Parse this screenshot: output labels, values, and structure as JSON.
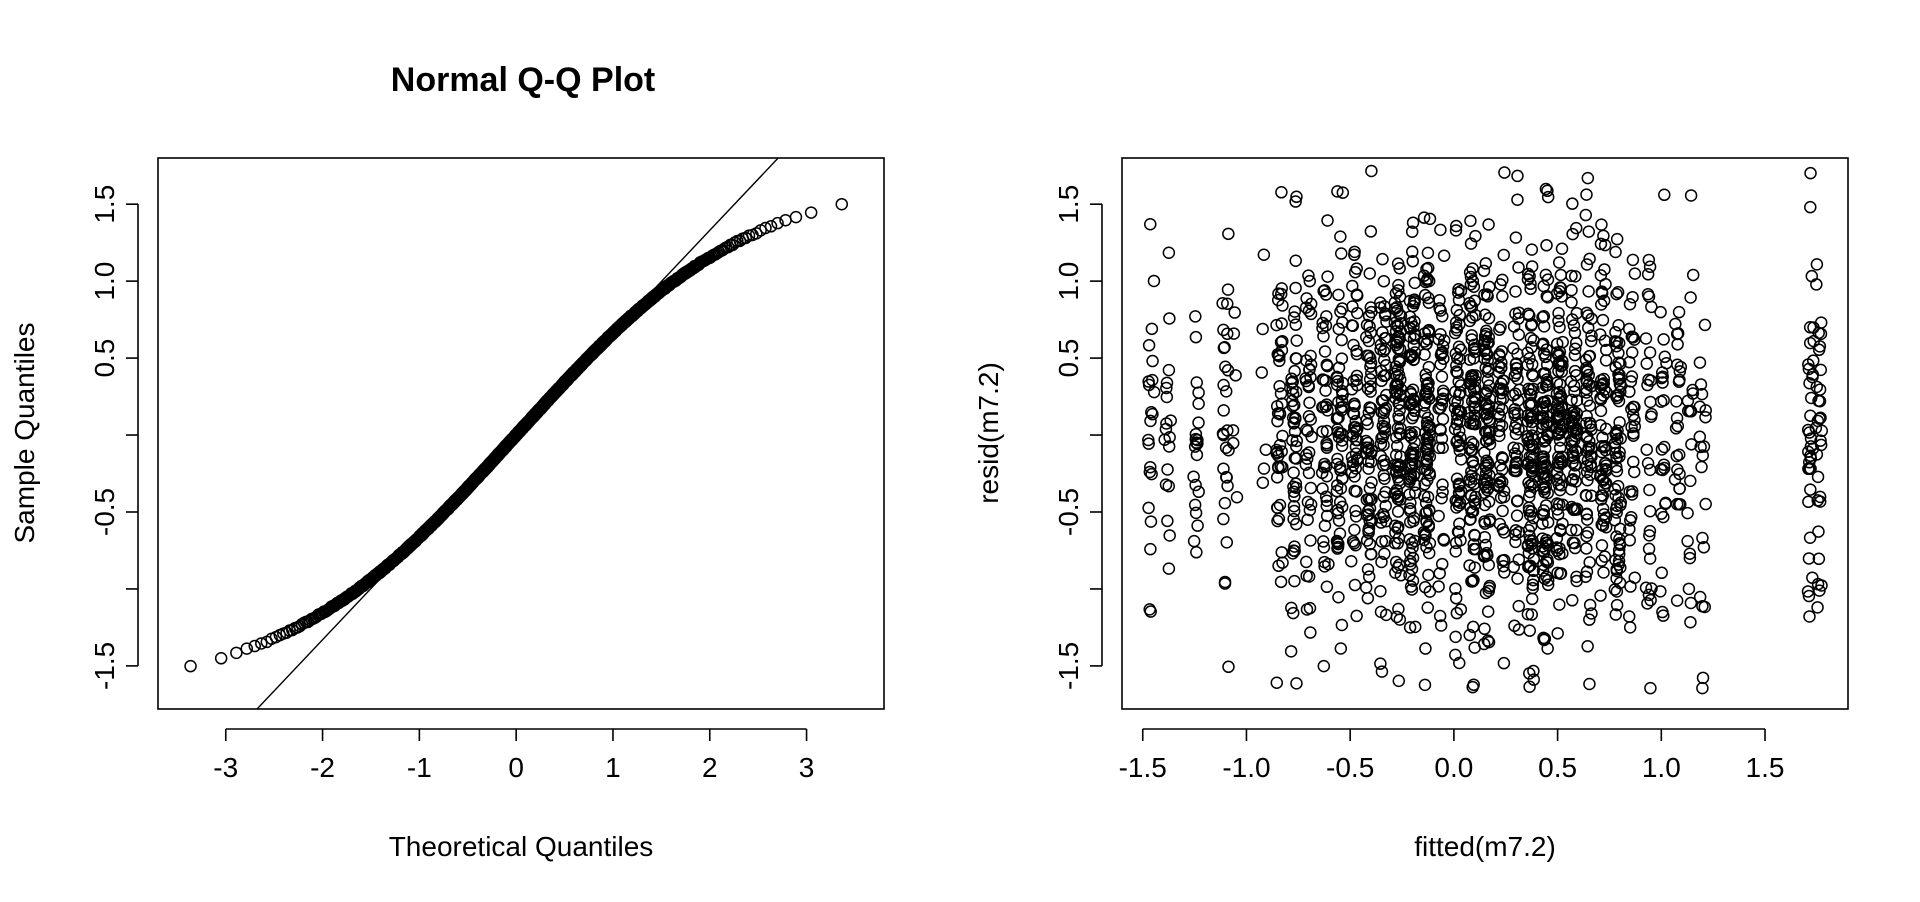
{
  "chart_data": [
    {
      "type": "scatter",
      "title": "Normal Q-Q Plot",
      "xlabel": "Theoretical Quantiles",
      "ylabel": "Sample Quantiles",
      "xlim": [
        -3.7,
        3.8
      ],
      "ylim": [
        -1.78,
        1.8
      ],
      "xticks": [
        -3,
        -2,
        -1,
        0,
        1,
        2,
        3
      ],
      "yticks": [
        -1.5,
        -1.0,
        -0.5,
        0.0,
        0.5,
        1.0,
        1.5
      ],
      "ytick_labels": [
        "-1.5",
        "",
        "-0.5",
        "",
        "0.5",
        "1.0",
        "1.5"
      ],
      "xtick_labels": [
        "-3",
        "-2",
        "-1",
        "0",
        "1",
        "2",
        "3"
      ],
      "grid": false,
      "marker": "open-circle",
      "reference_line": {
        "intercept": 0.0,
        "slope": 0.665
      },
      "n_points": 1300
    },
    {
      "type": "scatter",
      "title": "",
      "xlabel": "fitted(m7.2)",
      "ylabel": "resid(m7.2)",
      "xlim": [
        -1.6,
        1.9
      ],
      "ylim": [
        -1.78,
        1.8
      ],
      "xticks": [
        -1.5,
        -1.0,
        -0.5,
        0.0,
        0.5,
        1.0,
        1.5
      ],
      "xtick_labels": [
        "-1.5",
        "-1.0",
        "-0.5",
        "0.0",
        "0.5",
        "1.0",
        "1.5"
      ],
      "yticks": [
        -1.5,
        -1.0,
        -0.5,
        0.0,
        0.5,
        1.0,
        1.5
      ],
      "ytick_labels": [
        "-1.5",
        "",
        "-0.5",
        "",
        "0.5",
        "1.0",
        "1.5"
      ],
      "grid": false,
      "marker": "open-circle",
      "fitted_groups": [
        {
          "x": -1.46,
          "n": 22
        },
        {
          "x": -1.38,
          "n": 18
        },
        {
          "x": -1.24,
          "n": 22
        },
        {
          "x": -1.1,
          "n": 28
        },
        {
          "x": -1.05,
          "n": 6
        },
        {
          "x": -0.92,
          "n": 6
        },
        {
          "x": -0.84,
          "n": 45
        },
        {
          "x": -0.77,
          "n": 50
        },
        {
          "x": -0.7,
          "n": 40
        },
        {
          "x": -0.62,
          "n": 45
        },
        {
          "x": -0.55,
          "n": 60
        },
        {
          "x": -0.48,
          "n": 55
        },
        {
          "x": -0.41,
          "n": 60
        },
        {
          "x": -0.34,
          "n": 60
        },
        {
          "x": -0.27,
          "n": 95
        },
        {
          "x": -0.2,
          "n": 95
        },
        {
          "x": -0.13,
          "n": 90
        },
        {
          "x": -0.06,
          "n": 40
        },
        {
          "x": 0.02,
          "n": 70
        },
        {
          "x": 0.09,
          "n": 90
        },
        {
          "x": 0.16,
          "n": 90
        },
        {
          "x": 0.23,
          "n": 55
        },
        {
          "x": 0.3,
          "n": 55
        },
        {
          "x": 0.37,
          "n": 100
        },
        {
          "x": 0.44,
          "n": 100
        },
        {
          "x": 0.51,
          "n": 90
        },
        {
          "x": 0.58,
          "n": 70
        },
        {
          "x": 0.65,
          "n": 70
        },
        {
          "x": 0.72,
          "n": 65
        },
        {
          "x": 0.79,
          "n": 70
        },
        {
          "x": 0.86,
          "n": 35
        },
        {
          "x": 0.94,
          "n": 30
        },
        {
          "x": 1.01,
          "n": 25
        },
        {
          "x": 1.08,
          "n": 25
        },
        {
          "x": 1.14,
          "n": 18
        },
        {
          "x": 1.2,
          "n": 20
        },
        {
          "x": 1.72,
          "n": 35
        },
        {
          "x": 1.76,
          "n": 30
        }
      ]
    }
  ]
}
